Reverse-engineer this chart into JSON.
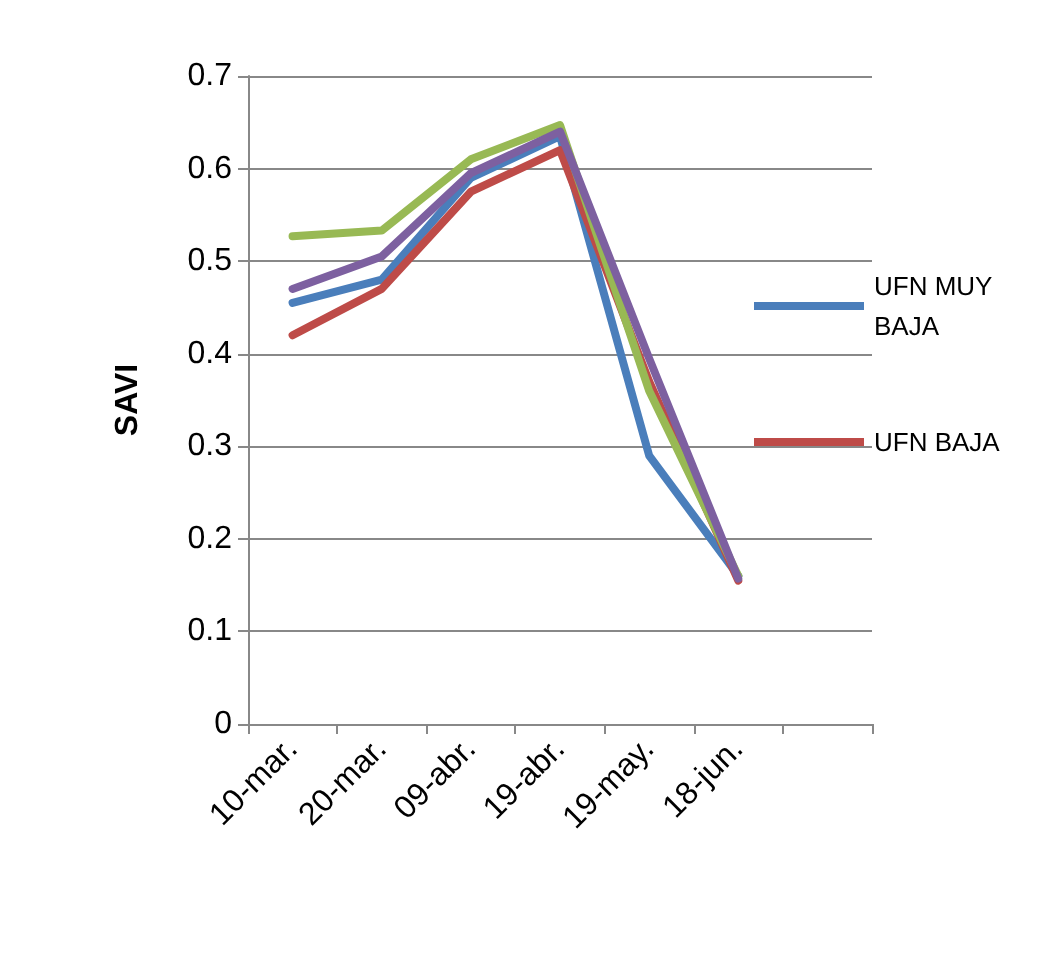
{
  "chart_data": {
    "type": "line",
    "ylabel": "SAVI",
    "categories": [
      "10-mar.",
      "20-mar.",
      "09-abr.",
      "19-abr.",
      "19-may.",
      "18-jun.",
      null
    ],
    "series": [
      {
        "name": "UFN MUY BAJA",
        "color": "#4a7ebb",
        "values": [
          0.455,
          0.48,
          0.59,
          0.635,
          0.29,
          0.16,
          null
        ]
      },
      {
        "name": "UFN BAJA",
        "color": "#be4b48",
        "values": [
          0.42,
          0.47,
          0.575,
          0.62,
          0.37,
          0.155,
          null
        ]
      },
      {
        "color": "#98b954",
        "values": [
          0.527,
          0.533,
          0.61,
          0.647,
          0.36,
          0.16,
          null
        ]
      },
      {
        "color": "#7d60a0",
        "values": [
          0.47,
          0.505,
          0.595,
          0.64,
          0.395,
          0.157,
          null
        ]
      }
    ],
    "ylim": [
      0,
      0.7
    ],
    "yticks": [
      0,
      0.1,
      0.2,
      0.3,
      0.4,
      0.5,
      0.6,
      0.7
    ],
    "grid": "y",
    "legend": "right",
    "marker": "none",
    "line_style": "solid"
  }
}
